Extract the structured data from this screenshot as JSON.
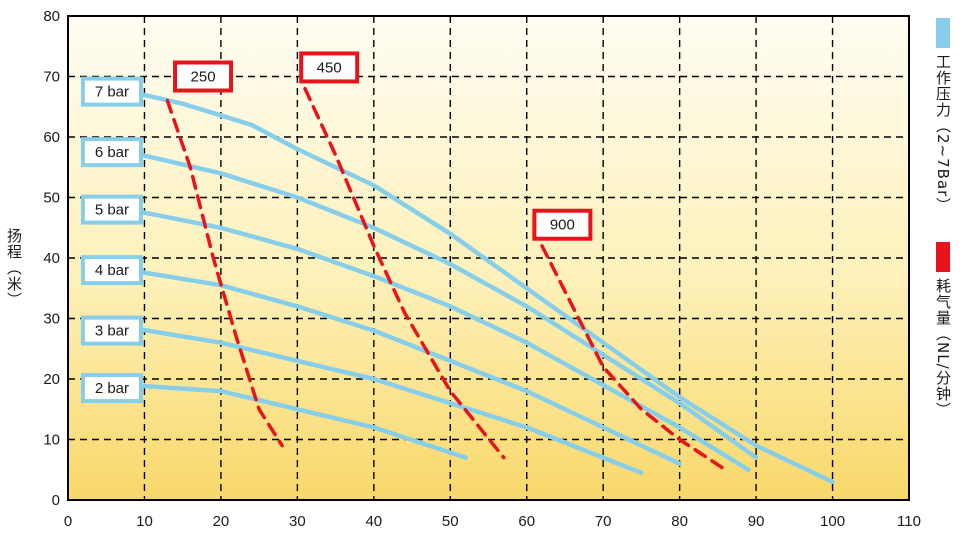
{
  "chart_data": {
    "type": "line",
    "xlabel": "",
    "ylabel": "扬程（米）",
    "xlim": [
      0,
      110
    ],
    "ylim": [
      0,
      80
    ],
    "x_ticks": [
      "0",
      "10",
      "20",
      "30",
      "40",
      "50",
      "60",
      "70",
      "80",
      "90",
      "100",
      "110"
    ],
    "y_ticks": [
      "0",
      "10",
      "20",
      "30",
      "40",
      "50",
      "60",
      "70",
      "80"
    ],
    "grid": true,
    "legend_position": "right",
    "legend": [
      {
        "label": "工作压力（2~7Bar）",
        "color": "#87ceeb"
      },
      {
        "label": "耗气量（NL/分钟）",
        "color": "#e8141c"
      }
    ],
    "series": [
      {
        "name": "2 bar",
        "group": "pressure",
        "color": "#87ceeb",
        "points": [
          [
            8,
            19
          ],
          [
            20,
            18
          ],
          [
            30,
            15
          ],
          [
            40,
            12
          ],
          [
            52,
            7
          ]
        ]
      },
      {
        "name": "3 bar",
        "group": "pressure",
        "color": "#87ceeb",
        "points": [
          [
            8,
            28.5
          ],
          [
            20,
            26
          ],
          [
            30,
            23
          ],
          [
            40,
            20
          ],
          [
            50,
            16
          ],
          [
            60,
            12
          ],
          [
            75,
            4.5
          ]
        ]
      },
      {
        "name": "4 bar",
        "group": "pressure",
        "color": "#87ceeb",
        "points": [
          [
            8,
            38
          ],
          [
            20,
            35.5
          ],
          [
            30,
            32
          ],
          [
            40,
            28
          ],
          [
            50,
            23
          ],
          [
            60,
            18
          ],
          [
            70,
            12
          ],
          [
            80,
            6
          ]
        ]
      },
      {
        "name": "5 bar",
        "group": "pressure",
        "color": "#87ceeb",
        "points": [
          [
            8,
            48
          ],
          [
            20,
            45
          ],
          [
            30,
            41.5
          ],
          [
            40,
            37
          ],
          [
            50,
            32
          ],
          [
            60,
            26
          ],
          [
            70,
            19
          ],
          [
            80,
            12
          ],
          [
            89,
            5
          ]
        ]
      },
      {
        "name": "6 bar",
        "group": "pressure",
        "color": "#87ceeb",
        "points": [
          [
            8,
            57.5
          ],
          [
            20,
            54
          ],
          [
            30,
            50
          ],
          [
            40,
            45
          ],
          [
            50,
            39
          ],
          [
            60,
            32
          ],
          [
            70,
            24
          ],
          [
            80,
            16
          ],
          [
            90,
            7
          ]
        ]
      },
      {
        "name": "7 bar",
        "group": "pressure",
        "color": "#87ceeb",
        "points": [
          [
            8,
            67.5
          ],
          [
            15,
            65.5
          ],
          [
            24,
            62
          ],
          [
            30,
            58
          ],
          [
            40,
            52
          ],
          [
            50,
            44
          ],
          [
            60,
            35
          ],
          [
            70,
            26
          ],
          [
            80,
            17
          ],
          [
            90,
            9
          ],
          [
            100,
            3
          ]
        ]
      },
      {
        "name": "250",
        "group": "air",
        "color": "#e8141c",
        "points": [
          [
            13,
            66
          ],
          [
            16,
            55
          ],
          [
            19,
            40
          ],
          [
            22,
            27
          ],
          [
            25,
            15
          ],
          [
            28,
            9
          ]
        ]
      },
      {
        "name": "450",
        "group": "air",
        "color": "#e8141c",
        "points": [
          [
            31,
            68
          ],
          [
            35,
            57
          ],
          [
            40,
            42
          ],
          [
            44,
            31
          ],
          [
            50,
            18
          ],
          [
            57,
            7
          ]
        ]
      },
      {
        "name": "900",
        "group": "air",
        "color": "#e8141c",
        "points": [
          [
            62,
            42
          ],
          [
            66,
            32
          ],
          [
            70,
            22
          ],
          [
            75,
            15
          ],
          [
            80,
            10
          ],
          [
            86,
            5
          ]
        ]
      }
    ],
    "series_labels": [
      {
        "text": "7 bar",
        "at": [
          3,
          67.5
        ],
        "style": "pressure"
      },
      {
        "text": "6 bar",
        "at": [
          3,
          57.5
        ],
        "style": "pressure"
      },
      {
        "text": "5 bar",
        "at": [
          3,
          48
        ],
        "style": "pressure"
      },
      {
        "text": "4 bar",
        "at": [
          3,
          38
        ],
        "style": "pressure"
      },
      {
        "text": "3 bar",
        "at": [
          3,
          28
        ],
        "style": "pressure"
      },
      {
        "text": "2 bar",
        "at": [
          3,
          18.5
        ],
        "style": "pressure"
      },
      {
        "text": "250",
        "at": [
          14,
          70
        ],
        "style": "air"
      },
      {
        "text": "450",
        "at": [
          30.5,
          71.5
        ],
        "style": "air"
      },
      {
        "text": "900",
        "at": [
          61,
          45.5
        ],
        "style": "air"
      }
    ]
  }
}
